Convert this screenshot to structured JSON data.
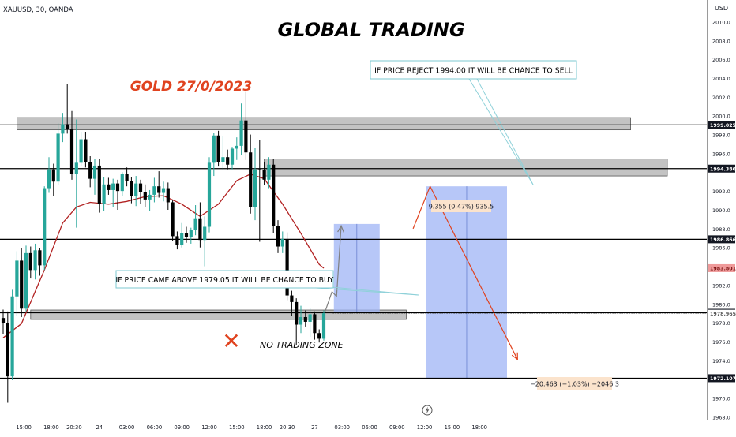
{
  "symbol": "XAUUSD, 30, OANDA",
  "currency": "USD",
  "title": "GLOBAL TRADING",
  "subtitle": "GOLD 27/0/2023",
  "colors": {
    "bull": "#26a69a",
    "bear": "#000000",
    "ma": "#b22222",
    "zone_fill": "#b8b8b8",
    "box_fill": "#9fb4f5",
    "accent_red": "#e0431f",
    "ma_label_bg": "#ef9a9a",
    "arrow_gray": "#808080"
  },
  "annotations": {
    "sell_note": "IF PRICE REJECT 1994.00 IT WILL BE CHANCE TO SELL",
    "buy_note": "IF PRICE CAME ABOVE 1979.05 IT WILL BE CHANCE TO BUY",
    "no_trade": "NO TRADING ZONE",
    "buy_measure": "9.355 (0.47%) 935.5",
    "sell_measure": "−20.463 (−1.03%) −2046.3",
    "x_mark": "✕"
  },
  "price_labels": [
    {
      "price": 1999.025,
      "text": "1999.025",
      "style": "dark"
    },
    {
      "price": 1994.38,
      "text": "1994.380",
      "style": "dark"
    },
    {
      "price": 1986.866,
      "text": "1986.866",
      "style": "dark"
    },
    {
      "price": 1983.801,
      "text": "1983.801",
      "style": "ma"
    },
    {
      "price": 1979.058,
      "text": "1979.058",
      "style": "dark"
    },
    {
      "price": 1978.965,
      "text": "1978.965",
      "style": "light"
    },
    {
      "price": 1972.107,
      "text": "1972.107",
      "style": "dark"
    }
  ],
  "chart_data": {
    "type": "candlestick",
    "instrument": "XAUUSD",
    "timeframe": "30",
    "ylim": [
      1967.7,
      2012.3
    ],
    "y_ticks": [
      2010.0,
      2008.0,
      2006.0,
      2004.0,
      2002.0,
      2000.0,
      1998.0,
      1996.0,
      1992.0,
      1990.0,
      1988.0,
      1986.0,
      1982.0,
      1980.0,
      1978.0,
      1976.0,
      1974.0,
      1970.0,
      1968.0
    ],
    "x_ticks": [
      {
        "label": "15:00",
        "index": 4.5
      },
      {
        "label": "18:00",
        "index": 10.5
      },
      {
        "label": "20:30",
        "index": 15.5
      },
      {
        "label": "24",
        "index": 21
      },
      {
        "label": "03:00",
        "index": 27
      },
      {
        "label": "06:00",
        "index": 33
      },
      {
        "label": "09:00",
        "index": 39
      },
      {
        "label": "12:00",
        "index": 45
      },
      {
        "label": "15:00",
        "index": 51
      },
      {
        "label": "18:00",
        "index": 57
      },
      {
        "label": "20:30",
        "index": 62
      },
      {
        "label": "27",
        "index": 68
      },
      {
        "label": "03:00",
        "index": 74
      },
      {
        "label": "06:00",
        "index": 80
      },
      {
        "label": "09:00",
        "index": 86
      },
      {
        "label": "12:00",
        "index": 92
      },
      {
        "label": "15:00",
        "index": 98
      },
      {
        "label": "18:00",
        "index": 104
      }
    ],
    "candles": [
      {
        "o": 1978.5,
        "h": 1979.4,
        "l": 1976.8,
        "c": 1978.0
      },
      {
        "o": 1978.0,
        "h": 1979.2,
        "l": 1969.5,
        "c": 1972.3
      },
      {
        "o": 1972.3,
        "h": 1981.5,
        "l": 1971.9,
        "c": 1980.8
      },
      {
        "o": 1980.8,
        "h": 1985.6,
        "l": 1978.7,
        "c": 1984.6
      },
      {
        "o": 1984.6,
        "h": 1985.9,
        "l": 1978.6,
        "c": 1979.5
      },
      {
        "o": 1979.5,
        "h": 1986.2,
        "l": 1979.2,
        "c": 1985.4
      },
      {
        "o": 1985.4,
        "h": 1986.1,
        "l": 1982.7,
        "c": 1983.6
      },
      {
        "o": 1983.6,
        "h": 1986.4,
        "l": 1982.6,
        "c": 1985.7
      },
      {
        "o": 1985.7,
        "h": 1985.9,
        "l": 1983.0,
        "c": 1984.1
      },
      {
        "o": 1984.1,
        "h": 1992.5,
        "l": 1983.6,
        "c": 1992.3
      },
      {
        "o": 1992.3,
        "h": 1995.6,
        "l": 1991.8,
        "c": 1994.3
      },
      {
        "o": 1994.3,
        "h": 1994.9,
        "l": 1991.5,
        "c": 1993.0
      },
      {
        "o": 1993.0,
        "h": 1999.2,
        "l": 1992.6,
        "c": 1998.1
      },
      {
        "o": 1998.1,
        "h": 2000.3,
        "l": 1997.2,
        "c": 1999.1
      },
      {
        "o": 1999.1,
        "h": 2003.4,
        "l": 1998.1,
        "c": 1998.6
      },
      {
        "o": 1998.6,
        "h": 2000.5,
        "l": 1993.2,
        "c": 1993.8
      },
      {
        "o": 1993.8,
        "h": 1999.6,
        "l": 1988.1,
        "c": 1995.0
      },
      {
        "o": 1995.0,
        "h": 1998.3,
        "l": 1994.6,
        "c": 1997.5
      },
      {
        "o": 1997.5,
        "h": 1998.3,
        "l": 1994.5,
        "c": 1995.1
      },
      {
        "o": 1995.1,
        "h": 1995.7,
        "l": 1992.4,
        "c": 1993.3
      },
      {
        "o": 1993.3,
        "h": 1995.4,
        "l": 1991.6,
        "c": 1994.7
      },
      {
        "o": 1994.7,
        "h": 1995.4,
        "l": 1989.7,
        "c": 1990.6
      },
      {
        "o": 1990.6,
        "h": 1993.5,
        "l": 1989.9,
        "c": 1992.7
      },
      {
        "o": 1992.7,
        "h": 1993.4,
        "l": 1991.6,
        "c": 1992.1
      },
      {
        "o": 1992.1,
        "h": 1993.3,
        "l": 1990.3,
        "c": 1992.8
      },
      {
        "o": 1992.8,
        "h": 1993.2,
        "l": 1990.0,
        "c": 1992.0
      },
      {
        "o": 1992.0,
        "h": 1994.0,
        "l": 1991.5,
        "c": 1993.8
      },
      {
        "o": 1993.8,
        "h": 1994.5,
        "l": 1992.5,
        "c": 1993.1
      },
      {
        "o": 1993.1,
        "h": 1993.5,
        "l": 1990.7,
        "c": 1991.5
      },
      {
        "o": 1991.5,
        "h": 1993.6,
        "l": 1990.4,
        "c": 1992.8
      },
      {
        "o": 1992.8,
        "h": 1993.2,
        "l": 1990.6,
        "c": 1991.9
      },
      {
        "o": 1991.9,
        "h": 1992.7,
        "l": 1990.3,
        "c": 1991.1
      },
      {
        "o": 1991.1,
        "h": 1992.1,
        "l": 1989.9,
        "c": 1991.6
      },
      {
        "o": 1991.6,
        "h": 1993.4,
        "l": 1990.8,
        "c": 1992.5
      },
      {
        "o": 1992.5,
        "h": 1994.1,
        "l": 1991.3,
        "c": 1991.8
      },
      {
        "o": 1991.8,
        "h": 1993.0,
        "l": 1990.9,
        "c": 1992.3
      },
      {
        "o": 1992.3,
        "h": 1992.9,
        "l": 1990.0,
        "c": 1990.8
      },
      {
        "o": 1990.8,
        "h": 1991.0,
        "l": 1986.7,
        "c": 1987.2
      },
      {
        "o": 1987.2,
        "h": 1987.7,
        "l": 1985.8,
        "c": 1986.3
      },
      {
        "o": 1986.3,
        "h": 1988.6,
        "l": 1986.0,
        "c": 1987.5
      },
      {
        "o": 1987.5,
        "h": 1988.2,
        "l": 1986.5,
        "c": 1987.1
      },
      {
        "o": 1987.1,
        "h": 1988.1,
        "l": 1986.4,
        "c": 1987.9
      },
      {
        "o": 1987.9,
        "h": 1990.5,
        "l": 1987.3,
        "c": 1989.1
      },
      {
        "o": 1989.1,
        "h": 1990.8,
        "l": 1986.0,
        "c": 1986.8
      },
      {
        "o": 1986.8,
        "h": 1989.3,
        "l": 1984.0,
        "c": 1988.2
      },
      {
        "o": 1988.2,
        "h": 1995.6,
        "l": 1987.6,
        "c": 1995.0
      },
      {
        "o": 1995.0,
        "h": 1998.2,
        "l": 1993.6,
        "c": 1997.9
      },
      {
        "o": 1997.9,
        "h": 1998.4,
        "l": 1994.6,
        "c": 1995.1
      },
      {
        "o": 1995.1,
        "h": 1997.8,
        "l": 1994.2,
        "c": 1995.6
      },
      {
        "o": 1995.6,
        "h": 1996.4,
        "l": 1994.3,
        "c": 1994.8
      },
      {
        "o": 1994.8,
        "h": 1996.7,
        "l": 1994.3,
        "c": 1996.5
      },
      {
        "o": 1996.5,
        "h": 1997.7,
        "l": 1995.3,
        "c": 1996.8
      },
      {
        "o": 1996.8,
        "h": 2001.3,
        "l": 1995.8,
        "c": 1999.5
      },
      {
        "o": 1999.5,
        "h": 2002.6,
        "l": 1995.3,
        "c": 1996.1
      },
      {
        "o": 1996.1,
        "h": 1998.0,
        "l": 1989.6,
        "c": 1990.3
      },
      {
        "o": 1990.3,
        "h": 1996.6,
        "l": 1988.9,
        "c": 1994.3
      },
      {
        "o": 1994.3,
        "h": 1997.4,
        "l": 1986.6,
        "c": 1994.2
      },
      {
        "o": 1994.2,
        "h": 1995.1,
        "l": 1992.6,
        "c": 1993.2
      },
      {
        "o": 1993.2,
        "h": 1995.6,
        "l": 1992.3,
        "c": 1994.8
      },
      {
        "o": 1994.8,
        "h": 1995.4,
        "l": 1987.5,
        "c": 1988.3
      },
      {
        "o": 1988.3,
        "h": 1988.9,
        "l": 1985.4,
        "c": 1986.1
      },
      {
        "o": 1986.1,
        "h": 1987.7,
        "l": 1985.4,
        "c": 1986.9
      },
      {
        "o": 1986.9,
        "h": 1987.6,
        "l": 1980.4,
        "c": 1980.9
      },
      {
        "o": 1980.9,
        "h": 1981.4,
        "l": 1978.7,
        "c": 1980.2
      },
      {
        "o": 1980.2,
        "h": 1980.6,
        "l": 1975.6,
        "c": 1977.8
      },
      {
        "o": 1977.8,
        "h": 1979.8,
        "l": 1976.9,
        "c": 1978.6
      },
      {
        "o": 1978.6,
        "h": 1979.3,
        "l": 1977.6,
        "c": 1978.1
      },
      {
        "o": 1978.1,
        "h": 1979.5,
        "l": 1976.5,
        "c": 1978.9
      },
      {
        "o": 1978.9,
        "h": 1979.2,
        "l": 1976.2,
        "c": 1976.9
      },
      {
        "o": 1976.9,
        "h": 1977.3,
        "l": 1975.9,
        "c": 1976.3
      },
      {
        "o": 1976.3,
        "h": 1979.3,
        "l": 1976.1,
        "c": 1979.0
      }
    ],
    "ma_series": [
      {
        "index": 0,
        "value": 1976.4
      },
      {
        "index": 4,
        "value": 1977.9
      },
      {
        "index": 9,
        "value": 1983.6
      },
      {
        "index": 13,
        "value": 1988.6
      },
      {
        "index": 16,
        "value": 1990.3
      },
      {
        "index": 19,
        "value": 1990.8
      },
      {
        "index": 23,
        "value": 1990.6
      },
      {
        "index": 27,
        "value": 1990.9
      },
      {
        "index": 31,
        "value": 1991.4
      },
      {
        "index": 35,
        "value": 1991.5
      },
      {
        "index": 39,
        "value": 1990.6
      },
      {
        "index": 43,
        "value": 1989.3
      },
      {
        "index": 47,
        "value": 1990.6
      },
      {
        "index": 51,
        "value": 1993.1
      },
      {
        "index": 54,
        "value": 1993.8
      },
      {
        "index": 57,
        "value": 1993.3
      },
      {
        "index": 61,
        "value": 1990.6
      },
      {
        "index": 65,
        "value": 1987.5
      },
      {
        "index": 69,
        "value": 1984.2
      },
      {
        "index": 70,
        "value": 1983.8
      }
    ],
    "horizontal_levels": [
      1999.025,
      1994.38,
      1986.866,
      1979.058,
      1972.107
    ],
    "dotted_level": 1978.965,
    "zones": [
      {
        "from_index": 3,
        "to_index": 137,
        "low": 1998.5,
        "high": 1999.8
      },
      {
        "from_index": 57,
        "to_index": 145,
        "low": 1993.6,
        "high": 1995.4
      },
      {
        "from_index": 6,
        "to_index": 88,
        "low": 1978.35,
        "high": 1979.35
      }
    ],
    "boxes": [
      {
        "name": "buy",
        "from_index": 72.2,
        "to_index": 82.2,
        "low": 1979.1,
        "high": 1988.5
      },
      {
        "name": "sell",
        "from_index": 92.4,
        "to_index": 110,
        "low": 1972.1,
        "high": 1992.5
      }
    ],
    "paths": [
      {
        "name": "buy-projection",
        "points": [
          [
            70.3,
            1979.2
          ],
          [
            71.8,
            1981.3
          ],
          [
            72.8,
            1980.8
          ],
          [
            73.8,
            1988.3
          ]
        ]
      },
      {
        "name": "sell-projection",
        "points": [
          [
            89.5,
            1988.0
          ],
          [
            93.2,
            1992.5
          ],
          [
            112.3,
            1974.1
          ]
        ]
      }
    ]
  }
}
